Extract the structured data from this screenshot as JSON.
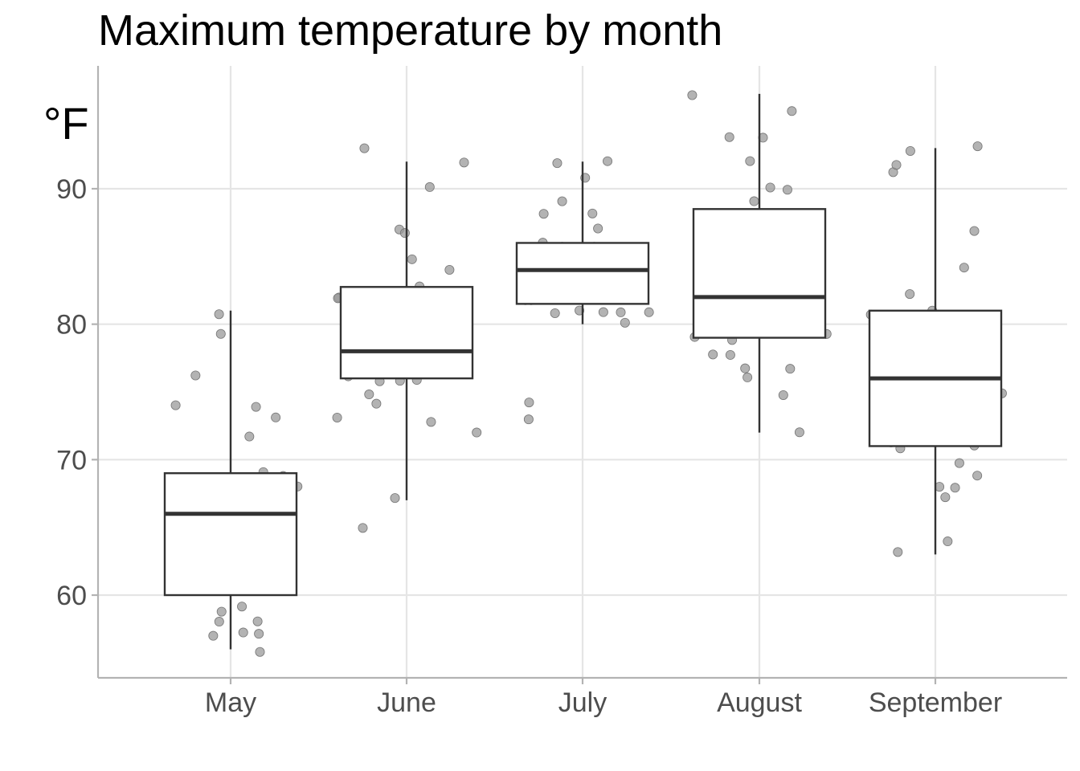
{
  "chart_data": {
    "type": "boxplot",
    "title": "Maximum temperature by month",
    "ylabel": "°F",
    "xlabel": "",
    "categories": [
      "May",
      "June",
      "July",
      "August",
      "September"
    ],
    "yticks": [
      60,
      70,
      80,
      90
    ],
    "ylim": [
      54,
      99
    ],
    "grid": true,
    "boxes": [
      {
        "category": "May",
        "q1": 60,
        "median": 66,
        "q3": 69,
        "whisker_low": 56,
        "whisker_high": 81
      },
      {
        "category": "June",
        "q1": 76,
        "median": 78,
        "q3": 82.75,
        "whisker_low": 67,
        "whisker_high": 92
      },
      {
        "category": "July",
        "q1": 81.5,
        "median": 84,
        "q3": 86,
        "whisker_low": 80,
        "whisker_high": 92
      },
      {
        "category": "August",
        "q1": 79,
        "median": 82,
        "q3": 88.5,
        "whisker_low": 72,
        "whisker_high": 97
      },
      {
        "category": "September",
        "q1": 71,
        "median": 76,
        "q3": 81,
        "whisker_low": 63,
        "whisker_high": 93
      }
    ],
    "points": [
      {
        "category": "May",
        "values": [
          67,
          72,
          74,
          62,
          56,
          66,
          65,
          59,
          61,
          69,
          74,
          69,
          66,
          68,
          58,
          64,
          66,
          57,
          68,
          62,
          59,
          73,
          61,
          61,
          57,
          58,
          57,
          67,
          81,
          79,
          76
        ]
      },
      {
        "category": "June",
        "values": [
          78,
          74,
          67,
          84,
          85,
          79,
          82,
          87,
          90,
          87,
          93,
          92,
          82,
          80,
          79,
          77,
          72,
          65,
          73,
          76,
          77,
          76,
          76,
          76,
          75,
          78,
          73,
          80,
          77,
          83
        ]
      },
      {
        "category": "July",
        "values": [
          84,
          85,
          81,
          84,
          83,
          83,
          88,
          92,
          92,
          89,
          82,
          73,
          81,
          91,
          80,
          81,
          82,
          84,
          87,
          85,
          74,
          81,
          82,
          86,
          85,
          82,
          86,
          88,
          86,
          83,
          81
        ]
      },
      {
        "category": "August",
        "values": [
          81,
          81,
          82,
          86,
          85,
          87,
          89,
          90,
          90,
          92,
          86,
          86,
          82,
          80,
          79,
          77,
          79,
          76,
          78,
          78,
          77,
          72,
          75,
          79,
          81,
          86,
          88,
          97,
          94,
          96,
          94
        ]
      },
      {
        "category": "September",
        "values": [
          91,
          92,
          93,
          93,
          87,
          84,
          80,
          78,
          75,
          73,
          81,
          76,
          77,
          71,
          71,
          78,
          67,
          76,
          68,
          82,
          64,
          71,
          81,
          69,
          63,
          70,
          77,
          75,
          76,
          68
        ]
      }
    ],
    "colors": {
      "points": "#999999",
      "box_line": "#333333",
      "grid": "#e5e5e5",
      "axis": "#b3b3b3"
    }
  }
}
